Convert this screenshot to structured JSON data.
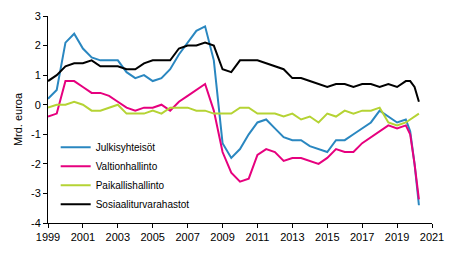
{
  "chart_data": {
    "type": "line",
    "y_label": "Mrd. euroa",
    "x": [
      1999,
      1999.5,
      2000,
      2000.5,
      2001,
      2001.5,
      2002,
      2002.5,
      2003,
      2003.5,
      2004,
      2004.5,
      2005,
      2005.5,
      2006,
      2006.5,
      2007,
      2007.5,
      2008,
      2008.5,
      2009,
      2009.5,
      2010,
      2010.5,
      2011,
      2011.5,
      2012,
      2012.5,
      2013,
      2013.5,
      2014,
      2014.5,
      2015,
      2015.5,
      2016,
      2016.5,
      2017,
      2017.5,
      2018,
      2018.5,
      2019,
      2019.5,
      2019.75,
      2020,
      2020.25
    ],
    "series": [
      {
        "name": "Julkisyhteisöt",
        "color": "#2a87c0",
        "values": [
          0.2,
          0.5,
          2.1,
          2.4,
          1.9,
          1.6,
          1.5,
          1.5,
          1.5,
          1.1,
          0.9,
          1.0,
          0.8,
          0.9,
          1.2,
          1.7,
          2.1,
          2.5,
          2.65,
          1.5,
          -1.3,
          -1.8,
          -1.5,
          -1.0,
          -0.6,
          -0.5,
          -0.8,
          -1.1,
          -1.2,
          -1.2,
          -1.4,
          -1.5,
          -1.6,
          -1.2,
          -1.2,
          -1.0,
          -0.8,
          -0.6,
          -0.2,
          -0.4,
          -0.6,
          -0.5,
          -0.9,
          -2.0,
          -3.4
        ]
      },
      {
        "name": "Valtionhallinto",
        "color": "#e6007e",
        "values": [
          -0.4,
          -0.3,
          0.8,
          0.8,
          0.6,
          0.4,
          0.4,
          0.3,
          0.1,
          -0.1,
          -0.2,
          -0.1,
          -0.1,
          0.0,
          -0.2,
          0.1,
          0.3,
          0.5,
          0.7,
          -0.2,
          -1.6,
          -2.3,
          -2.6,
          -2.5,
          -1.7,
          -1.5,
          -1.6,
          -1.9,
          -1.8,
          -1.8,
          -1.9,
          -2.0,
          -1.8,
          -1.5,
          -1.6,
          -1.6,
          -1.3,
          -1.1,
          -0.9,
          -0.7,
          -0.8,
          -0.7,
          -1.0,
          -2.0,
          -3.2
        ]
      },
      {
        "name": "Paikallishallinto",
        "color": "#b5d334",
        "values": [
          -0.1,
          0.0,
          0.0,
          0.1,
          0.0,
          -0.2,
          -0.2,
          -0.1,
          0.0,
          -0.3,
          -0.3,
          -0.3,
          -0.2,
          -0.3,
          -0.1,
          -0.1,
          -0.1,
          -0.2,
          -0.2,
          -0.3,
          -0.3,
          -0.3,
          -0.1,
          -0.1,
          -0.3,
          -0.3,
          -0.3,
          -0.4,
          -0.3,
          -0.5,
          -0.4,
          -0.6,
          -0.3,
          -0.4,
          -0.2,
          -0.3,
          -0.2,
          -0.2,
          -0.1,
          -0.6,
          -0.7,
          -0.6,
          -0.5,
          -0.4,
          -0.3
        ]
      },
      {
        "name": "Sosiaaliturvarahastot",
        "color": "#000000",
        "values": [
          0.8,
          1.0,
          1.3,
          1.4,
          1.4,
          1.5,
          1.3,
          1.3,
          1.3,
          1.2,
          1.2,
          1.4,
          1.5,
          1.5,
          1.5,
          1.9,
          2.0,
          2.0,
          2.1,
          2.0,
          1.2,
          1.1,
          1.5,
          1.5,
          1.5,
          1.4,
          1.3,
          1.2,
          0.9,
          0.9,
          0.8,
          0.7,
          0.6,
          0.7,
          0.7,
          0.6,
          0.7,
          0.7,
          0.6,
          0.7,
          0.6,
          0.8,
          0.8,
          0.6,
          0.1
        ]
      }
    ],
    "xlim": [
      1999,
      2021
    ],
    "xticks": [
      1999,
      2001,
      2003,
      2005,
      2007,
      2009,
      2011,
      2013,
      2015,
      2017,
      2019,
      2021
    ],
    "ylim": [
      -4,
      3
    ],
    "yticks": [
      -4,
      -3,
      -2,
      -1,
      0,
      1,
      2,
      3
    ],
    "grid": false,
    "legend": "lower left"
  }
}
